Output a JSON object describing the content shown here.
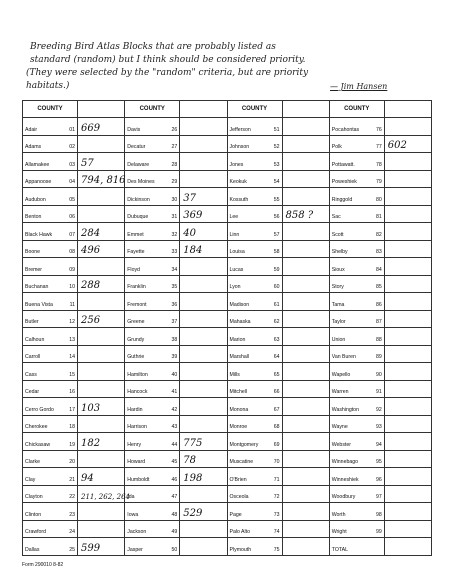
{
  "note": {
    "lines": [
      "Breeding Bird Atlas Blocks that are probably listed as",
      "standard (random) but I think should be considered priority.",
      "(They were selected by the \"random\" criteria, but are priority",
      "habitats.)"
    ],
    "signature": "— Jim Hansen"
  },
  "table": {
    "header": "COUNTY",
    "columns": [
      {
        "rows": [
          {
            "county": "Adair",
            "number": "01",
            "entry": "669"
          },
          {
            "county": "Adams",
            "number": "02"
          },
          {
            "county": "Allamakee",
            "number": "03",
            "entry": "57"
          },
          {
            "county": "Appanoose",
            "number": "04",
            "entry": "794, 816"
          },
          {
            "county": "Audubon",
            "number": "05"
          },
          {
            "county": "Benton",
            "number": "06"
          },
          {
            "county": "Black Hawk",
            "number": "07",
            "entry": "284"
          },
          {
            "county": "Boone",
            "number": "08",
            "entry": "496"
          },
          {
            "county": "Bremer",
            "number": "09"
          },
          {
            "county": "Buchanan",
            "number": "10",
            "entry": "288"
          },
          {
            "county": "Buena Vista",
            "number": "11"
          },
          {
            "county": "Butler",
            "number": "12",
            "entry": "256"
          },
          {
            "county": "Calhoun",
            "number": "13"
          },
          {
            "county": "Carroll",
            "number": "14"
          },
          {
            "county": "Cass",
            "number": "15"
          },
          {
            "county": "Cedar",
            "number": "16"
          },
          {
            "county": "Cerro Gordo",
            "number": "17",
            "entry": "103"
          },
          {
            "county": "Cherokee",
            "number": "18"
          },
          {
            "county": "Chickasaw",
            "number": "19",
            "entry": "182"
          },
          {
            "county": "Clarke",
            "number": "20"
          },
          {
            "county": "Clay",
            "number": "21",
            "entry": "94"
          },
          {
            "county": "Clayton",
            "number": "22",
            "entry": "211, 262, 264"
          },
          {
            "county": "Clinton",
            "number": "23"
          },
          {
            "county": "Crawford",
            "number": "24"
          },
          {
            "county": "Dallas",
            "number": "25",
            "entry": "599"
          }
        ]
      },
      {
        "rows": [
          {
            "county": "Davis",
            "number": "26"
          },
          {
            "county": "Decatur",
            "number": "27"
          },
          {
            "county": "Delaware",
            "number": "28"
          },
          {
            "county": "Des Moines",
            "number": "29"
          },
          {
            "county": "Dickinson",
            "number": "30",
            "entry": "37"
          },
          {
            "county": "Dubuque",
            "number": "31",
            "entry": "369"
          },
          {
            "county": "Emmet",
            "number": "32",
            "entry": "40"
          },
          {
            "county": "Fayette",
            "number": "33",
            "entry": "184"
          },
          {
            "county": "Floyd",
            "number": "34"
          },
          {
            "county": "Franklin",
            "number": "35"
          },
          {
            "county": "Fremont",
            "number": "36"
          },
          {
            "county": "Greene",
            "number": "37"
          },
          {
            "county": "Grundy",
            "number": "38"
          },
          {
            "county": "Guthrie",
            "number": "39"
          },
          {
            "county": "Hamilton",
            "number": "40"
          },
          {
            "county": "Hancock",
            "number": "41"
          },
          {
            "county": "Hardin",
            "number": "42"
          },
          {
            "county": "Harrison",
            "number": "43"
          },
          {
            "county": "Henry",
            "number": "44",
            "entry": "775"
          },
          {
            "county": "Howard",
            "number": "45",
            "entry": "78"
          },
          {
            "county": "Humboldt",
            "number": "46",
            "entry": "198"
          },
          {
            "county": "Ida",
            "number": "47"
          },
          {
            "county": "Iowa",
            "number": "48",
            "entry": "529"
          },
          {
            "county": "Jackson",
            "number": "49"
          },
          {
            "county": "Jasper",
            "number": "50"
          }
        ]
      },
      {
        "rows": [
          {
            "county": "Jefferson",
            "number": "51"
          },
          {
            "county": "Johnson",
            "number": "52"
          },
          {
            "county": "Jones",
            "number": "53"
          },
          {
            "county": "Keokuk",
            "number": "54"
          },
          {
            "county": "Kossuth",
            "number": "55"
          },
          {
            "county": "Lee",
            "number": "56",
            "entry": "858 ?"
          },
          {
            "county": "Linn",
            "number": "57"
          },
          {
            "county": "Louisa",
            "number": "58"
          },
          {
            "county": "Lucas",
            "number": "59"
          },
          {
            "county": "Lyon",
            "number": "60"
          },
          {
            "county": "Madison",
            "number": "61"
          },
          {
            "county": "Mahaska",
            "number": "62"
          },
          {
            "county": "Marion",
            "number": "63"
          },
          {
            "county": "Marshall",
            "number": "64"
          },
          {
            "county": "Mills",
            "number": "65"
          },
          {
            "county": "Mitchell",
            "number": "66"
          },
          {
            "county": "Monona",
            "number": "67"
          },
          {
            "county": "Monroe",
            "number": "68"
          },
          {
            "county": "Montgomery",
            "number": "69"
          },
          {
            "county": "Muscatine",
            "number": "70"
          },
          {
            "county": "O'Brien",
            "number": "71"
          },
          {
            "county": "Osceola",
            "number": "72"
          },
          {
            "county": "Page",
            "number": "73"
          },
          {
            "county": "Palo Alto",
            "number": "74"
          },
          {
            "county": "Plymouth",
            "number": "75"
          }
        ]
      },
      {
        "rows": [
          {
            "county": "Pocahontas",
            "number": "76"
          },
          {
            "county": "Polk",
            "number": "77",
            "entry": "602"
          },
          {
            "county": "Pottawatt.",
            "number": "78"
          },
          {
            "county": "Poweshiek",
            "number": "79"
          },
          {
            "county": "Ringgold",
            "number": "80"
          },
          {
            "county": "Sac",
            "number": "81"
          },
          {
            "county": "Scott",
            "number": "82"
          },
          {
            "county": "Shelby",
            "number": "83"
          },
          {
            "county": "Sioux",
            "number": "84"
          },
          {
            "county": "Story",
            "number": "85"
          },
          {
            "county": "Tama",
            "number": "86"
          },
          {
            "county": "Taylor",
            "number": "87"
          },
          {
            "county": "Union",
            "number": "88"
          },
          {
            "county": "Van Buren",
            "number": "89"
          },
          {
            "county": "Wapello",
            "number": "90"
          },
          {
            "county": "Warren",
            "number": "91"
          },
          {
            "county": "Washington",
            "number": "92"
          },
          {
            "county": "Wayne",
            "number": "93"
          },
          {
            "county": "Webster",
            "number": "94"
          },
          {
            "county": "Winnebago",
            "number": "95"
          },
          {
            "county": "Winneshiek",
            "number": "96"
          },
          {
            "county": "Woodbury",
            "number": "97"
          },
          {
            "county": "Worth",
            "number": "98"
          },
          {
            "county": "Wright",
            "number": "99"
          },
          {
            "county": "TOTAL"
          }
        ]
      }
    ]
  },
  "footer": "Form 290010 8-82"
}
